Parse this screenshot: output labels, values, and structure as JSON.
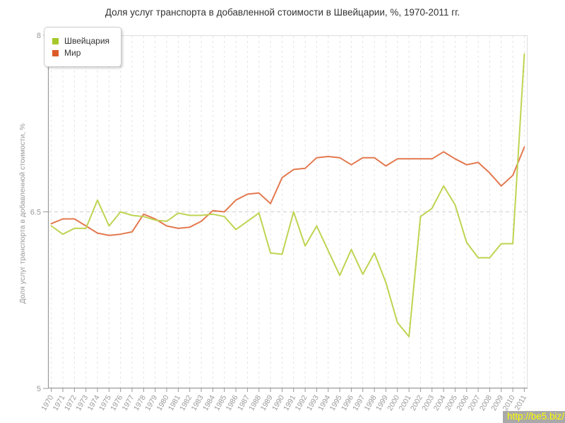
{
  "chart_data": {
    "type": "line",
    "title": "Доля услуг транспорта в добавленной стоимости в Швейцарии, %, 1970-2011 гг.",
    "ylabel": "Доля услуг транспорта в добавленной стоимости, %",
    "xlabel": "",
    "ylim": [
      5,
      8
    ],
    "yticks": [
      {
        "value": 8,
        "label": "8"
      },
      {
        "value": 6.5,
        "label": "6.5"
      },
      {
        "value": 5,
        "label": "5"
      }
    ],
    "grid": "vertical dashed line per year; horizontal dashed line at 6.5; light frame top/right",
    "legend_position": "top-left",
    "xticks_rotation": -60,
    "x": [
      1970,
      1971,
      1972,
      1973,
      1974,
      1975,
      1976,
      1977,
      1978,
      1979,
      1980,
      1981,
      1982,
      1983,
      1984,
      1985,
      1986,
      1987,
      1988,
      1989,
      1990,
      1991,
      1992,
      1993,
      1994,
      1995,
      1996,
      1997,
      1998,
      1999,
      2000,
      2001,
      2002,
      2003,
      2004,
      2005,
      2006,
      2007,
      2008,
      2009,
      2010,
      2011
    ],
    "series": [
      {
        "name": "Швейцария",
        "swatch": "#a5c828",
        "line": "#c0d351",
        "values": [
          6.38,
          6.31,
          6.36,
          6.36,
          6.6,
          6.38,
          6.5,
          6.47,
          6.46,
          6.43,
          6.42,
          6.49,
          6.47,
          6.47,
          6.48,
          6.46,
          6.35,
          6.42,
          6.49,
          6.15,
          6.14,
          6.5,
          6.21,
          6.38,
          6.17,
          5.96,
          6.18,
          5.97,
          6.15,
          5.9,
          5.56,
          5.44,
          6.46,
          6.53,
          6.72,
          6.56,
          6.24,
          6.11,
          6.11,
          6.23,
          6.23,
          7.84
        ]
      },
      {
        "name": "Мир",
        "swatch": "#dc5a28",
        "line": "#e3794f",
        "values": [
          6.4,
          6.44,
          6.44,
          6.38,
          6.32,
          6.3,
          6.31,
          6.33,
          6.48,
          6.44,
          6.38,
          6.36,
          6.37,
          6.42,
          6.51,
          6.5,
          6.6,
          6.65,
          6.66,
          6.57,
          6.79,
          6.86,
          6.87,
          6.96,
          6.97,
          6.96,
          6.9,
          6.96,
          6.96,
          6.89,
          6.95,
          6.95,
          6.95,
          6.95,
          7.01,
          6.95,
          6.9,
          6.92,
          6.83,
          6.72,
          6.81,
          7.05
        ]
      }
    ],
    "axis_color": "#999999",
    "grid_color": "#e3e3e3",
    "midgrid_color": "#cccccc",
    "tick_label_color": "#999999"
  },
  "watermark": {
    "text": "http://be5.biz/"
  }
}
